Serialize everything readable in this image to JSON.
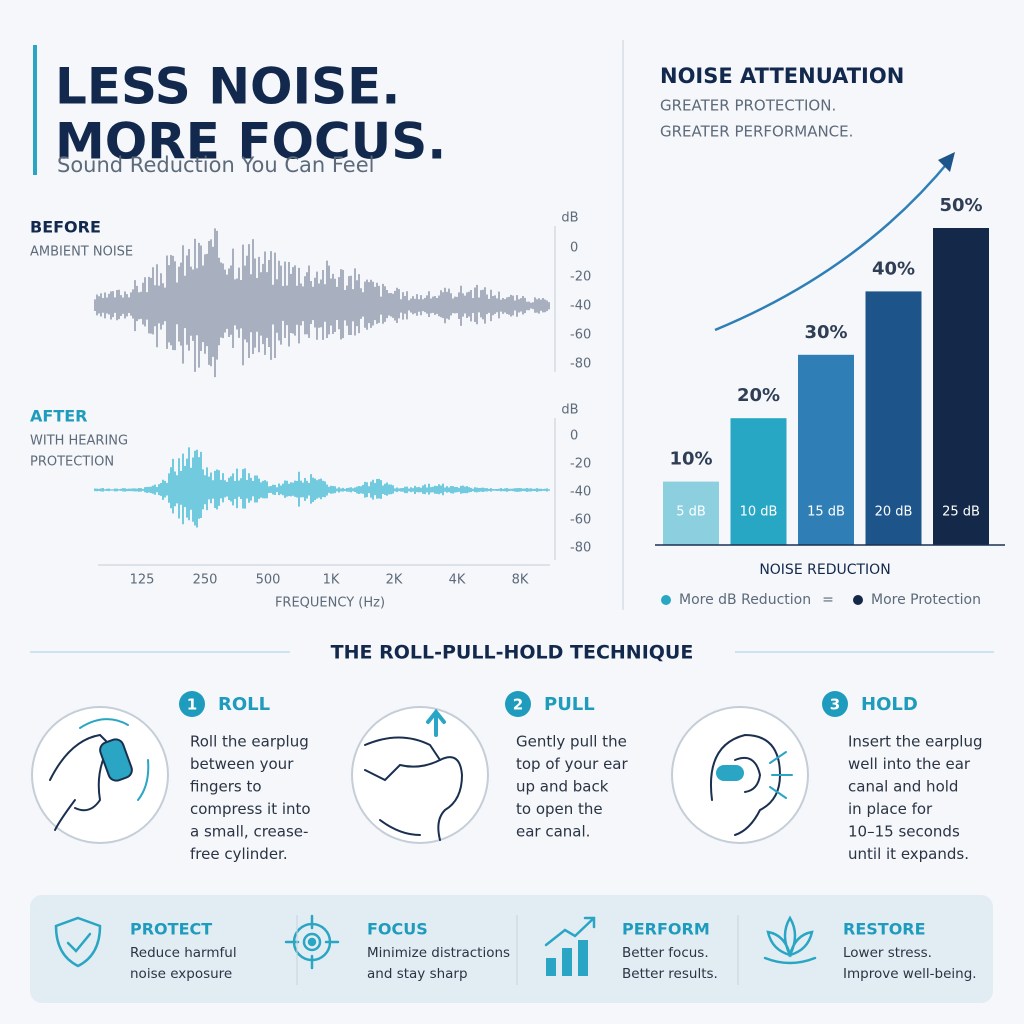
{
  "header": {
    "title_lines": [
      "LESS NOISE.",
      "MORE FOCUS."
    ],
    "subtitle": "Sound Reduction You Can Feel"
  },
  "waveform": {
    "before": {
      "label": "BEFORE",
      "sublabel_lines": [
        "AMBIENT NOISE"
      ]
    },
    "after": {
      "label": "AFTER",
      "sublabel_lines": [
        "WITH HEARING",
        "PROTECTION"
      ]
    },
    "db_unit": "dB",
    "db_ticks": [
      0,
      -20,
      -40,
      -60,
      -80
    ],
    "freq_ticks": [
      "125",
      "250",
      "500",
      "1K",
      "2K",
      "4K",
      "8K"
    ],
    "freq_label": "FREQUENCY (Hz)"
  },
  "chart_data": {
    "type": "bar",
    "title": "NOISE ATTENUATION",
    "subtitle_lines": [
      "GREATER PROTECTION.",
      "GREATER PERFORMANCE."
    ],
    "categories": [
      "5 dB",
      "10 dB",
      "15 dB",
      "20 dB",
      "25 dB"
    ],
    "values": [
      10,
      20,
      30,
      40,
      50
    ],
    "value_labels": [
      "10%",
      "20%",
      "30%",
      "40%",
      "50%"
    ],
    "colors": [
      "#8ccfdf",
      "#27a7c4",
      "#2f7fb6",
      "#1d5489",
      "#14294a"
    ],
    "x_label": "NOISE REDUCTION",
    "legend": [
      "More dB Reduction",
      "=",
      "More Protection"
    ]
  },
  "technique": {
    "title": "THE ROLL-PULL-HOLD TECHNIQUE",
    "steps": [
      {
        "number": "1",
        "title": "ROLL",
        "lines": [
          "Roll the earplug",
          "between your",
          "fingers to",
          "compress it into",
          "a small, crease-",
          "free cylinder."
        ]
      },
      {
        "number": "2",
        "title": "PULL",
        "lines": [
          "Gently pull the",
          "top of your ear",
          "up and back",
          "to open the",
          "ear canal."
        ]
      },
      {
        "number": "3",
        "title": "HOLD",
        "lines": [
          "Insert the earplug",
          "well into the ear",
          "canal and hold",
          "in place for",
          "10–15 seconds",
          "until it expands."
        ]
      }
    ]
  },
  "benefits": [
    {
      "title": "PROTECT",
      "lines": [
        "Reduce harmful",
        "noise exposure"
      ]
    },
    {
      "title": "FOCUS",
      "lines": [
        "Minimize distractions",
        "and stay sharp"
      ]
    },
    {
      "title": "PERFORM",
      "lines": [
        "Better focus.",
        "Better results."
      ]
    },
    {
      "title": "RESTORE",
      "lines": [
        "Lower stress.",
        "Improve well-being."
      ]
    }
  ]
}
